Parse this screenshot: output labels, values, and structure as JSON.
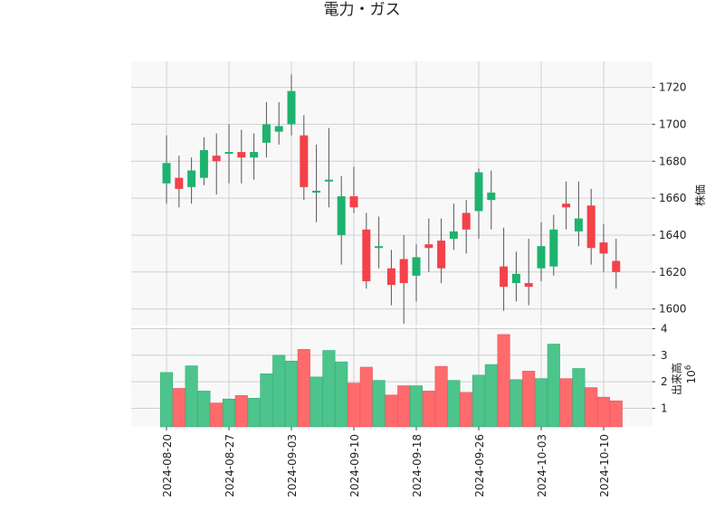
{
  "chart_data": {
    "type": "candlestick",
    "title": "電力・ガス",
    "colors": {
      "up": "#1db36f",
      "down": "#f4414a",
      "up_volume": "#4cc48c",
      "down_volume": "#ff6a6d"
    },
    "price_panel": {
      "ylabel": "株価",
      "ylim": [
        1591,
        1734
      ],
      "yticks": [
        1600,
        1620,
        1640,
        1660,
        1680,
        1700,
        1720
      ],
      "grid": true,
      "axis_side": "right"
    },
    "volume_panel": {
      "ylabel": "出来高",
      "unit": "10^6",
      "ylim": [
        0.3,
        4.05
      ],
      "yticks": [
        1,
        2,
        3,
        4
      ],
      "grid": true,
      "axis_side": "right"
    },
    "xticks": [
      "2024-08-20",
      "2024-08-27",
      "2024-09-03",
      "2024-09-10",
      "2024-09-18",
      "2024-09-26",
      "2024-10-03",
      "2024-10-10"
    ],
    "xtick_index": [
      0,
      5,
      10,
      15,
      20,
      25,
      30,
      35
    ],
    "candles": [
      {
        "o": 1668,
        "h": 1694,
        "l": 1657,
        "c": 1679,
        "v": 2.35
      },
      {
        "o": 1671,
        "h": 1683,
        "l": 1655,
        "c": 1665,
        "v": 1.75
      },
      {
        "o": 1666,
        "h": 1682,
        "l": 1657,
        "c": 1675,
        "v": 2.6
      },
      {
        "o": 1671,
        "h": 1693,
        "l": 1667,
        "c": 1686,
        "v": 1.65
      },
      {
        "o": 1683,
        "h": 1695,
        "l": 1662,
        "c": 1680,
        "v": 1.2
      },
      {
        "o": 1684,
        "h": 1700,
        "l": 1668,
        "c": 1685,
        "v": 1.35
      },
      {
        "o": 1685,
        "h": 1697,
        "l": 1668,
        "c": 1682,
        "v": 1.48
      },
      {
        "o": 1682,
        "h": 1695,
        "l": 1670,
        "c": 1685,
        "v": 1.38
      },
      {
        "o": 1690,
        "h": 1712,
        "l": 1682,
        "c": 1700,
        "v": 2.3
      },
      {
        "o": 1696,
        "h": 1712,
        "l": 1689,
        "c": 1699,
        "v": 3.0
      },
      {
        "o": 1700,
        "h": 1727,
        "l": 1694,
        "c": 1718,
        "v": 2.78
      },
      {
        "o": 1694,
        "h": 1705,
        "l": 1659,
        "c": 1666,
        "v": 3.22
      },
      {
        "o": 1663,
        "h": 1689,
        "l": 1647,
        "c": 1664,
        "v": 2.18
      },
      {
        "o": 1669,
        "h": 1698,
        "l": 1655,
        "c": 1670,
        "v": 3.18
      },
      {
        "o": 1640,
        "h": 1672,
        "l": 1624,
        "c": 1661,
        "v": 2.75
      },
      {
        "o": 1661,
        "h": 1677,
        "l": 1652,
        "c": 1655,
        "v": 1.95
      },
      {
        "o": 1643,
        "h": 1652,
        "l": 1611,
        "c": 1615,
        "v": 2.55
      },
      {
        "o": 1633,
        "h": 1650,
        "l": 1622,
        "c": 1634,
        "v": 2.05
      },
      {
        "o": 1622,
        "h": 1632,
        "l": 1602,
        "c": 1613,
        "v": 1.5
      },
      {
        "o": 1627,
        "h": 1640,
        "l": 1592,
        "c": 1614,
        "v": 1.85
      },
      {
        "o": 1618,
        "h": 1635,
        "l": 1604,
        "c": 1628,
        "v": 1.85
      },
      {
        "o": 1635,
        "h": 1649,
        "l": 1620,
        "c": 1633,
        "v": 1.65
      },
      {
        "o": 1637,
        "h": 1649,
        "l": 1614,
        "c": 1622,
        "v": 2.58
      },
      {
        "o": 1638,
        "h": 1657,
        "l": 1632,
        "c": 1642,
        "v": 2.05
      },
      {
        "o": 1652,
        "h": 1659,
        "l": 1630,
        "c": 1643,
        "v": 1.6
      },
      {
        "o": 1653,
        "h": 1676,
        "l": 1638,
        "c": 1674,
        "v": 2.25
      },
      {
        "o": 1659,
        "h": 1675,
        "l": 1643,
        "c": 1663,
        "v": 2.65
      },
      {
        "o": 1623,
        "h": 1644,
        "l": 1599,
        "c": 1612,
        "v": 3.78
      },
      {
        "o": 1614,
        "h": 1631,
        "l": 1604,
        "c": 1619,
        "v": 2.08
      },
      {
        "o": 1614,
        "h": 1638,
        "l": 1602,
        "c": 1612,
        "v": 2.4
      },
      {
        "o": 1622,
        "h": 1647,
        "l": 1615,
        "c": 1634,
        "v": 2.12
      },
      {
        "o": 1623,
        "h": 1651,
        "l": 1618,
        "c": 1643,
        "v": 3.42
      },
      {
        "o": 1657,
        "h": 1669,
        "l": 1643,
        "c": 1655,
        "v": 2.12
      },
      {
        "o": 1642,
        "h": 1669,
        "l": 1634,
        "c": 1649,
        "v": 2.5
      },
      {
        "o": 1656,
        "h": 1665,
        "l": 1624,
        "c": 1633,
        "v": 1.78
      },
      {
        "o": 1636,
        "h": 1646,
        "l": 1620,
        "c": 1630,
        "v": 1.42
      },
      {
        "o": 1626,
        "h": 1638,
        "l": 1611,
        "c": 1620,
        "v": 1.28
      }
    ]
  }
}
